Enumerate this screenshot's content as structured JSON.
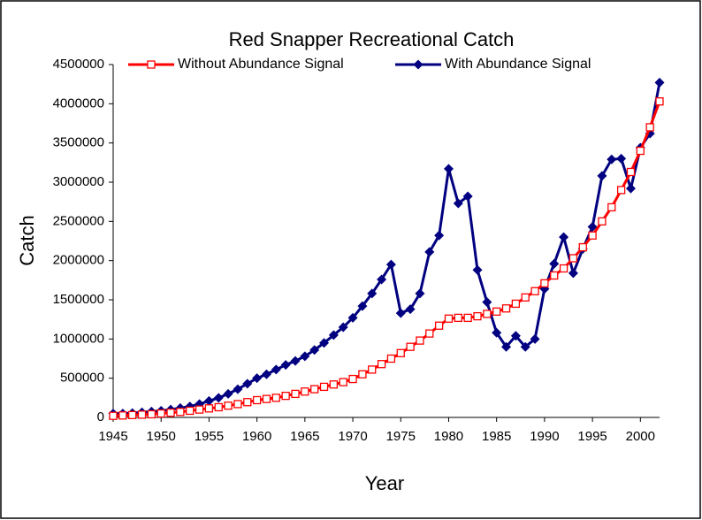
{
  "chart_data": {
    "type": "line",
    "title": "Red Snapper Recreational Catch",
    "x_label": "Year",
    "y_label": "Catch",
    "x": [
      1945,
      1946,
      1947,
      1948,
      1949,
      1950,
      1951,
      1952,
      1953,
      1954,
      1955,
      1956,
      1957,
      1958,
      1959,
      1960,
      1961,
      1962,
      1963,
      1964,
      1965,
      1966,
      1967,
      1968,
      1969,
      1970,
      1971,
      1972,
      1973,
      1974,
      1975,
      1976,
      1977,
      1978,
      1979,
      1980,
      1981,
      1982,
      1983,
      1984,
      1985,
      1986,
      1987,
      1988,
      1989,
      1990,
      1991,
      1992,
      1993,
      1994,
      1995,
      1996,
      1997,
      1998,
      1999,
      2000,
      2001,
      2002
    ],
    "xlim": [
      1945,
      2002
    ],
    "xticks": [
      1945,
      1950,
      1955,
      1960,
      1965,
      1970,
      1975,
      1980,
      1985,
      1990,
      1995,
      2000
    ],
    "ylim": [
      0,
      4500000
    ],
    "yticks": [
      0,
      500000,
      1000000,
      1500000,
      2000000,
      2500000,
      3000000,
      3500000,
      4000000,
      4500000
    ],
    "legend": "top",
    "series": [
      {
        "name": "Without Abundance Signal",
        "color": "#ff0000",
        "marker": "square",
        "values": [
          20000,
          25000,
          30000,
          35000,
          40000,
          50000,
          60000,
          70000,
          85000,
          100000,
          115000,
          130000,
          150000,
          170000,
          195000,
          220000,
          235000,
          250000,
          275000,
          300000,
          330000,
          360000,
          390000,
          420000,
          450000,
          490000,
          550000,
          610000,
          680000,
          750000,
          820000,
          900000,
          980000,
          1070000,
          1170000,
          1260000,
          1270000,
          1270000,
          1290000,
          1320000,
          1350000,
          1390000,
          1450000,
          1530000,
          1610000,
          1710000,
          1810000,
          1900000,
          2030000,
          2170000,
          2320000,
          2500000,
          2680000,
          2900000,
          3130000,
          3400000,
          3700000,
          4030000
        ]
      },
      {
        "name": "With Abundance Signal",
        "color": "#000080",
        "marker": "diamond",
        "values": [
          50000,
          50000,
          55000,
          65000,
          75000,
          85000,
          100000,
          120000,
          140000,
          170000,
          210000,
          250000,
          300000,
          360000,
          430000,
          500000,
          550000,
          610000,
          670000,
          720000,
          780000,
          860000,
          950000,
          1050000,
          1150000,
          1270000,
          1420000,
          1580000,
          1760000,
          1950000,
          1330000,
          1380000,
          1580000,
          2110000,
          2320000,
          3170000,
          2730000,
          2820000,
          1880000,
          1470000,
          1080000,
          900000,
          1040000,
          900000,
          1000000,
          1640000,
          1960000,
          2300000,
          1840000,
          2150000,
          2430000,
          3080000,
          3290000,
          3300000,
          2920000,
          3440000,
          3620000,
          4270000
        ]
      }
    ]
  }
}
